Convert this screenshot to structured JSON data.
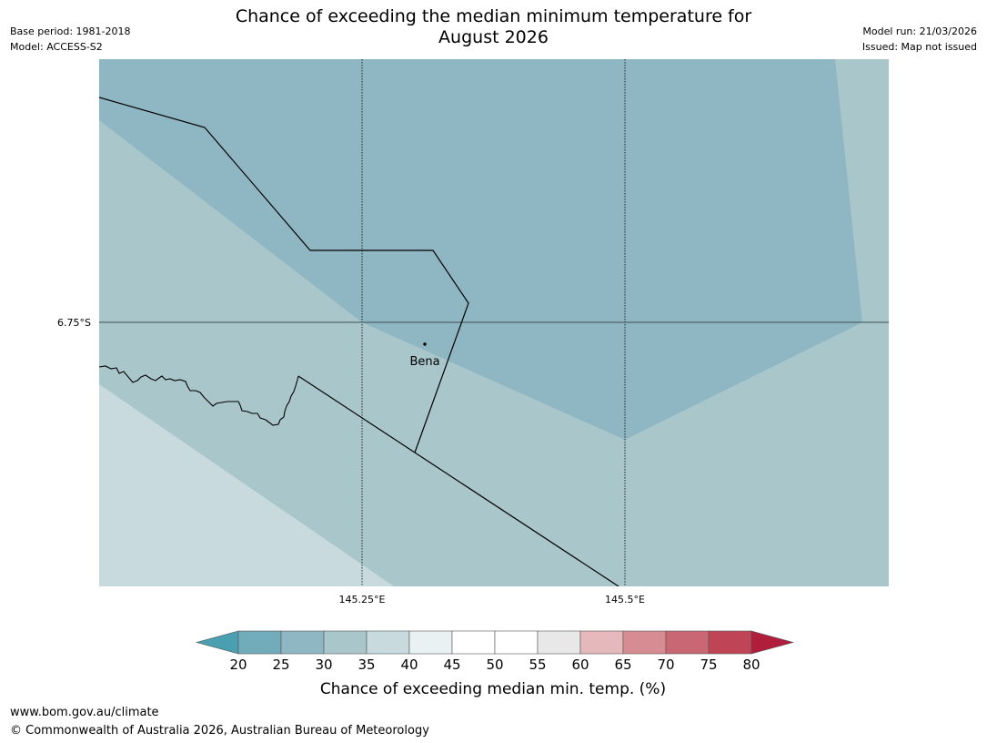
{
  "header": {
    "title_line1": "Chance of exceeding the median minimum temperature for",
    "title_line2": "August 2026",
    "base_period": "Base period: 1981-2018",
    "model": "Model: ACCESS-S2",
    "model_run": "Model run: 21/03/2026",
    "issued": "Issued: Map not issued"
  },
  "map": {
    "lat_label": "6.75°S",
    "lon_labels": [
      "145.25°E",
      "145.5°E"
    ],
    "place_name": "Bena"
  },
  "colorbar": {
    "label": "Chance of exceeding median min. temp. (%)",
    "ticks": [
      "20",
      "25",
      "30",
      "35",
      "40",
      "45",
      "50",
      "55",
      "60",
      "65",
      "70",
      "75",
      "80"
    ],
    "colors": [
      "#72abb9",
      "#8fb7c3",
      "#a9c6cb",
      "#c8dade",
      "#eaf1f2",
      "#ffffff",
      "#ffffff",
      "#e8e8e8",
      "#e5b8bc",
      "#d78c94",
      "#c96874",
      "#bf4455"
    ],
    "under_color": "#4a9fb0",
    "over_color": "#b01e3c"
  },
  "footer": {
    "url": "www.bom.gov.au/climate",
    "copyright": "© Commonwealth of Australia 2026, Australian Bureau of Meteorology"
  }
}
